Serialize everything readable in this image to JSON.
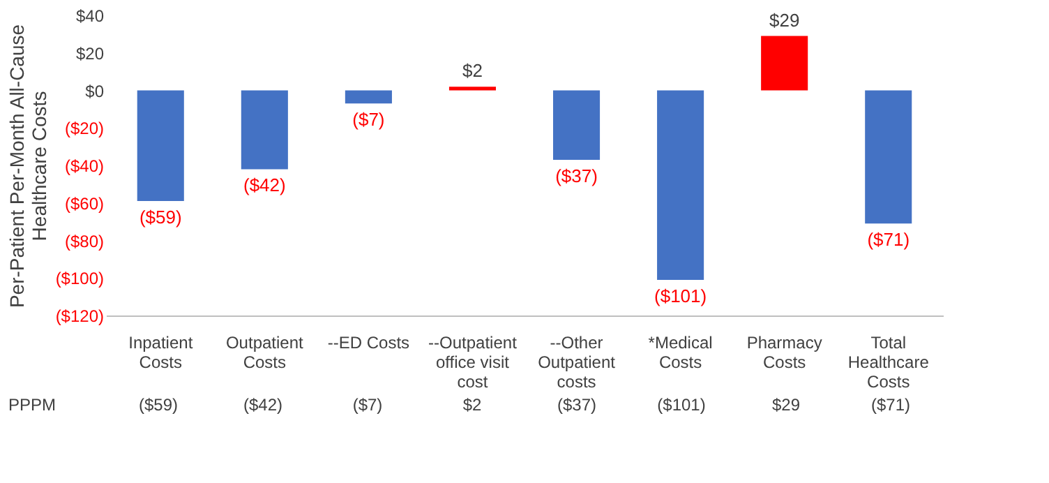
{
  "chart_data": {
    "type": "bar",
    "ylabel": "Per-Patient Per-Month All-Cause Healthcare Costs",
    "categories": [
      "Inpatient Costs",
      "Outpatient Costs",
      "--ED Costs",
      "--Outpatient office visit cost",
      "--Other Outpatient costs",
      "*Medical Costs",
      "Pharmacy Costs",
      "Total Healthcare Costs"
    ],
    "values": [
      -59,
      -42,
      -7,
      2,
      -37,
      -101,
      29,
      -71
    ],
    "colors": [
      "#4472c4",
      "#4472c4",
      "#4472c4",
      "#ff0000",
      "#4472c4",
      "#4472c4",
      "#ff0000",
      "#4472c4"
    ],
    "value_labels": [
      "($59)",
      "($42)",
      "($7)",
      "$2",
      "($37)",
      "($101)",
      "$29",
      "($71)"
    ],
    "ylim": [
      -120,
      40
    ],
    "yticks": [
      {
        "value": 40,
        "label": "$40"
      },
      {
        "value": 20,
        "label": "$20"
      },
      {
        "value": 0,
        "label": "$0"
      },
      {
        "value": -20,
        "label": "($20)"
      },
      {
        "value": -40,
        "label": "($40)"
      },
      {
        "value": -60,
        "label": "($60)"
      },
      {
        "value": -80,
        "label": "($80)"
      },
      {
        "value": -100,
        "label": "($100)"
      },
      {
        "value": -120,
        "label": "($120)"
      }
    ],
    "annotations": [
      "PPPM"
    ],
    "grid": false
  }
}
